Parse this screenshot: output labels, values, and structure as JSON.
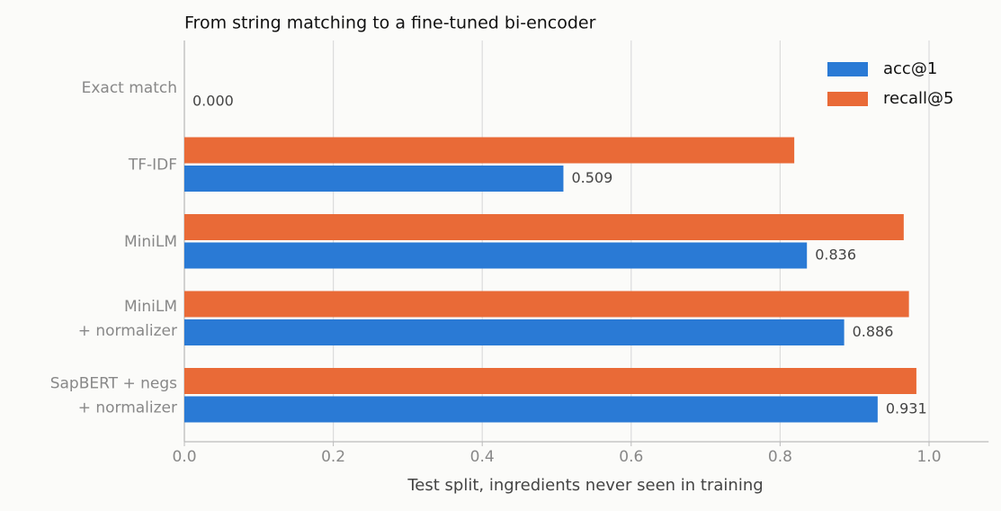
{
  "chart_data": {
    "type": "bar",
    "orientation": "horizontal",
    "title": "From string matching to a fine-tuned bi-encoder",
    "xlabel": "Test split, ingredients never seen in training",
    "categories": [
      "Exact match",
      "TF-IDF",
      "MiniLM",
      "MiniLM\n+ normalizer",
      "SapBERT + negs\n+ normalizer"
    ],
    "series": [
      {
        "name": "acc@1",
        "color": "#2a7ad5",
        "values": [
          0,
          0.509,
          0.836,
          0.886,
          0.931
        ],
        "value_labels": [
          "0.000",
          "0.509",
          "0.836",
          "0.886",
          "0.931"
        ]
      },
      {
        "name": "recall@5",
        "color": "#e96a37",
        "values": [
          0,
          0.819,
          0.966,
          0.973,
          0.983
        ]
      }
    ],
    "xlim": [
      0,
      1.08
    ],
    "xticks": [
      {
        "value": 0,
        "label": "0.0"
      },
      {
        "value": 0.2,
        "label": "0.2"
      },
      {
        "value": 0.4,
        "label": "0.4"
      },
      {
        "value": 0.6,
        "label": "0.6"
      },
      {
        "value": 0.8,
        "label": "0.8"
      },
      {
        "value": 1.0,
        "label": "1.0"
      }
    ],
    "grid": true,
    "legend": "upper right"
  }
}
